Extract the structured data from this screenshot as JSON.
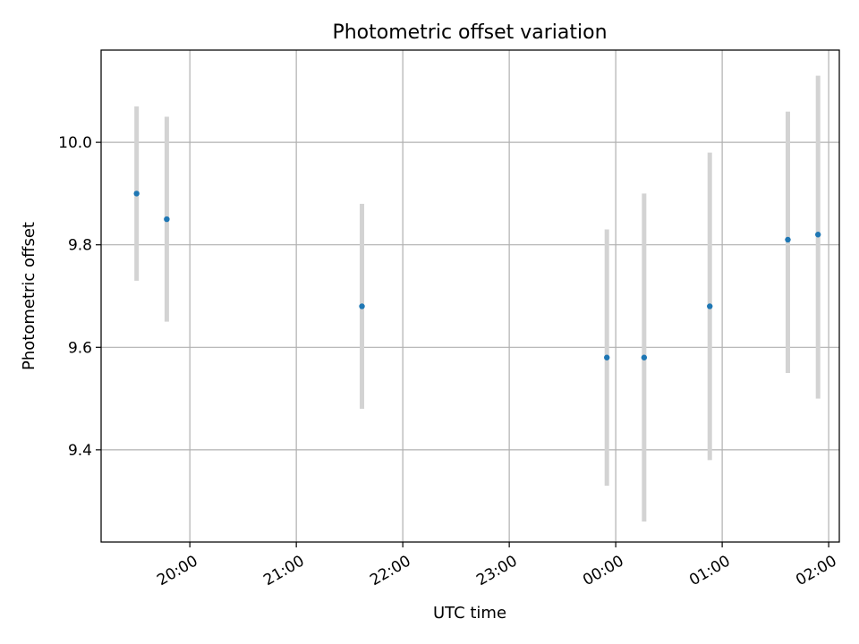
{
  "chart_data": {
    "type": "scatter",
    "title": "Photometric offset variation",
    "xlabel": "UTC time",
    "ylabel": "Photometric offset",
    "x_axis_kind": "time",
    "xlim": [
      "19:10",
      "02:06"
    ],
    "ylim": [
      9.22,
      10.18
    ],
    "grid": true,
    "x_ticks": [
      "20:00",
      "21:00",
      "22:00",
      "23:00",
      "00:00",
      "01:00",
      "02:00"
    ],
    "y_ticks": [
      "9.4",
      "9.6",
      "9.8",
      "10.0"
    ],
    "y_tick_values": [
      9.4,
      9.6,
      9.8,
      10.0
    ],
    "points": [
      {
        "x": "19:30",
        "y": 9.9,
        "err_low": 9.73,
        "err_high": 10.07
      },
      {
        "x": "19:47",
        "y": 9.85,
        "err_low": 9.65,
        "err_high": 10.05
      },
      {
        "x": "21:37",
        "y": 9.68,
        "err_low": 9.48,
        "err_high": 9.88
      },
      {
        "x": "23:55",
        "y": 9.58,
        "err_low": 9.33,
        "err_high": 9.83
      },
      {
        "x": "00:16",
        "y": 9.58,
        "err_low": 9.26,
        "err_high": 9.9
      },
      {
        "x": "00:53",
        "y": 9.68,
        "err_low": 9.38,
        "err_high": 9.98
      },
      {
        "x": "01:37",
        "y": 9.81,
        "err_low": 9.55,
        "err_high": 10.06
      },
      {
        "x": "01:54",
        "y": 9.82,
        "err_low": 9.5,
        "err_high": 10.13
      }
    ],
    "marker_color": "#1f77b4",
    "errorbar_color": "#d3d3d3",
    "grid_color": "#b0b0b0"
  }
}
